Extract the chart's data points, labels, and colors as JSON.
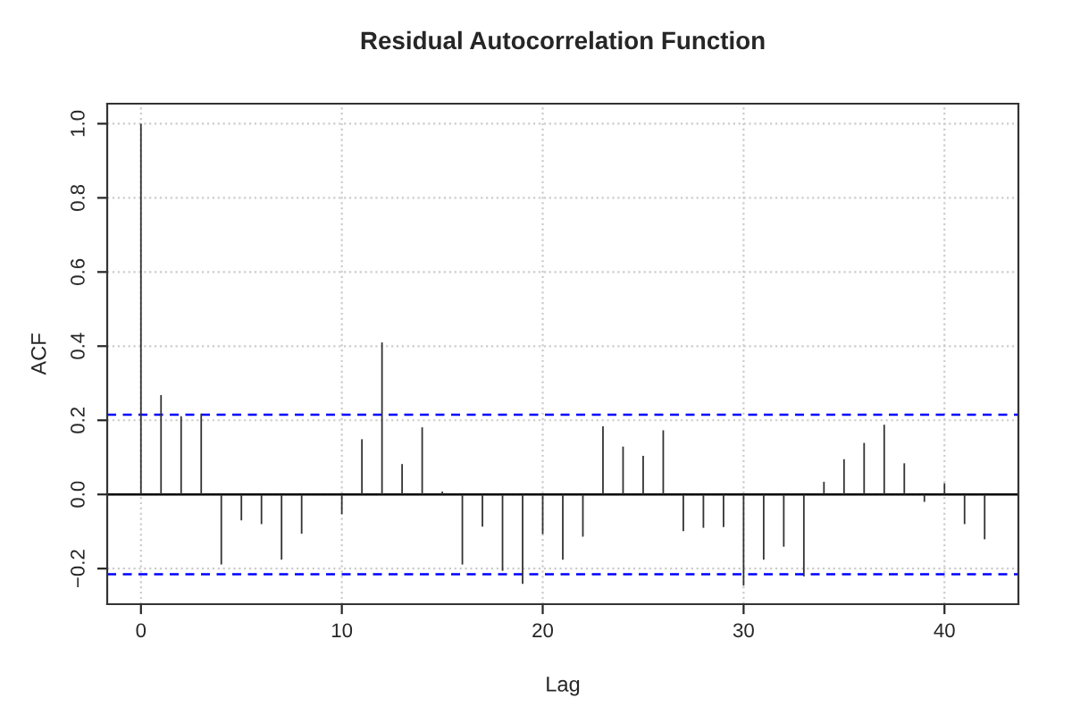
{
  "chart_data": {
    "type": "bar",
    "title": "Residual Autocorrelation Function",
    "xlabel": "Lag",
    "ylabel": "ACF",
    "x": [
      0,
      1,
      2,
      3,
      4,
      5,
      6,
      7,
      8,
      9,
      10,
      11,
      12,
      13,
      14,
      15,
      16,
      17,
      18,
      19,
      20,
      21,
      22,
      23,
      24,
      25,
      26,
      27,
      28,
      29,
      30,
      31,
      32,
      33,
      34,
      35,
      36,
      37,
      38,
      39,
      40,
      41,
      42
    ],
    "values": [
      1.0,
      0.268,
      0.211,
      0.218,
      -0.189,
      -0.07,
      -0.08,
      -0.176,
      -0.106,
      null,
      -0.053,
      0.149,
      0.41,
      0.082,
      0.181,
      0.008,
      -0.189,
      -0.087,
      -0.206,
      -0.241,
      -0.107,
      -0.176,
      -0.114,
      0.184,
      0.129,
      0.104,
      0.173,
      -0.099,
      -0.09,
      -0.088,
      -0.246,
      -0.176,
      -0.141,
      -0.221,
      0.034,
      0.095,
      0.139,
      0.188,
      0.084,
      -0.02,
      0.03,
      -0.08,
      -0.121
    ],
    "color": "#333333",
    "xlim": [
      -1.68,
      43.68
    ],
    "ylim": [
      -0.296,
      1.054
    ],
    "xticks": [
      0,
      10,
      20,
      30,
      40
    ],
    "yticks": [
      {
        "value": -0.2,
        "label": "−0.2"
      },
      {
        "value": 0,
        "label": "0.0"
      },
      {
        "value": 0.2,
        "label": "0.2"
      },
      {
        "value": 0.4,
        "label": "0.4"
      },
      {
        "value": 0.6,
        "label": "0.6"
      },
      {
        "value": 0.8,
        "label": "0.8"
      },
      {
        "value": 1.0,
        "label": "1.0"
      }
    ],
    "grid": true,
    "ref_lines": [
      {
        "axis": "y",
        "value": 0.215,
        "color": "#0000ff",
        "line_style": "dashed"
      },
      {
        "axis": "y",
        "value": -0.215,
        "color": "#0000ff",
        "line_style": "dashed"
      },
      {
        "axis": "y",
        "value": 0,
        "color": "#000000",
        "line_style": "solid"
      }
    ]
  }
}
